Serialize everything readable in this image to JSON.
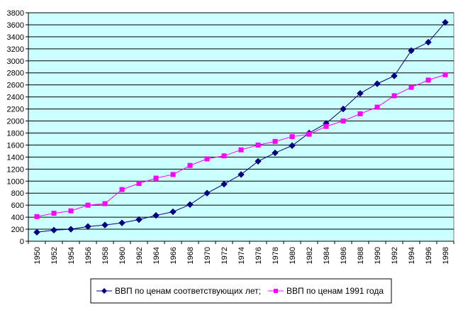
{
  "chart_data": {
    "type": "line",
    "title": "",
    "xlabel": "",
    "ylabel": "",
    "ylim": [
      0,
      3800
    ],
    "y_ticks": [
      0,
      200,
      400,
      600,
      800,
      1000,
      1200,
      1400,
      1600,
      1800,
      2000,
      2200,
      2400,
      2600,
      2800,
      3000,
      3200,
      3400,
      3600,
      3800
    ],
    "x_ticks": [
      1950,
      1952,
      1954,
      1956,
      1958,
      1960,
      1962,
      1964,
      1966,
      1968,
      1970,
      1972,
      1974,
      1976,
      1978,
      1980,
      1982,
      1984,
      1986,
      1988,
      1990,
      1992,
      1994,
      1996,
      1998
    ],
    "x": [
      1950,
      1952,
      1954,
      1956,
      1958,
      1960,
      1962,
      1964,
      1966,
      1968,
      1970,
      1972,
      1974,
      1976,
      1978,
      1980,
      1982,
      1984,
      1986,
      1988,
      1990,
      1992,
      1994,
      1996,
      1998
    ],
    "grid": true,
    "plot_background": "#ccffff",
    "legend_position": "bottom",
    "series": [
      {
        "name": "ВВП по ценам соответствующих лет;",
        "color": "#000080",
        "marker": "diamond",
        "values": [
          150,
          185,
          200,
          245,
          270,
          305,
          360,
          430,
          490,
          610,
          800,
          950,
          1110,
          1330,
          1470,
          1590,
          1800,
          1960,
          2200,
          2460,
          2620,
          2750,
          3170,
          3310,
          3640
        ]
      },
      {
        "name": "ВВП по ценам 1991 года",
        "color": "#ff00ff",
        "marker": "square",
        "values": [
          410,
          465,
          505,
          600,
          625,
          860,
          960,
          1050,
          1110,
          1260,
          1370,
          1420,
          1520,
          1600,
          1660,
          1740,
          1780,
          1910,
          2000,
          2120,
          2230,
          2420,
          2560,
          2680,
          2770
        ]
      }
    ]
  }
}
